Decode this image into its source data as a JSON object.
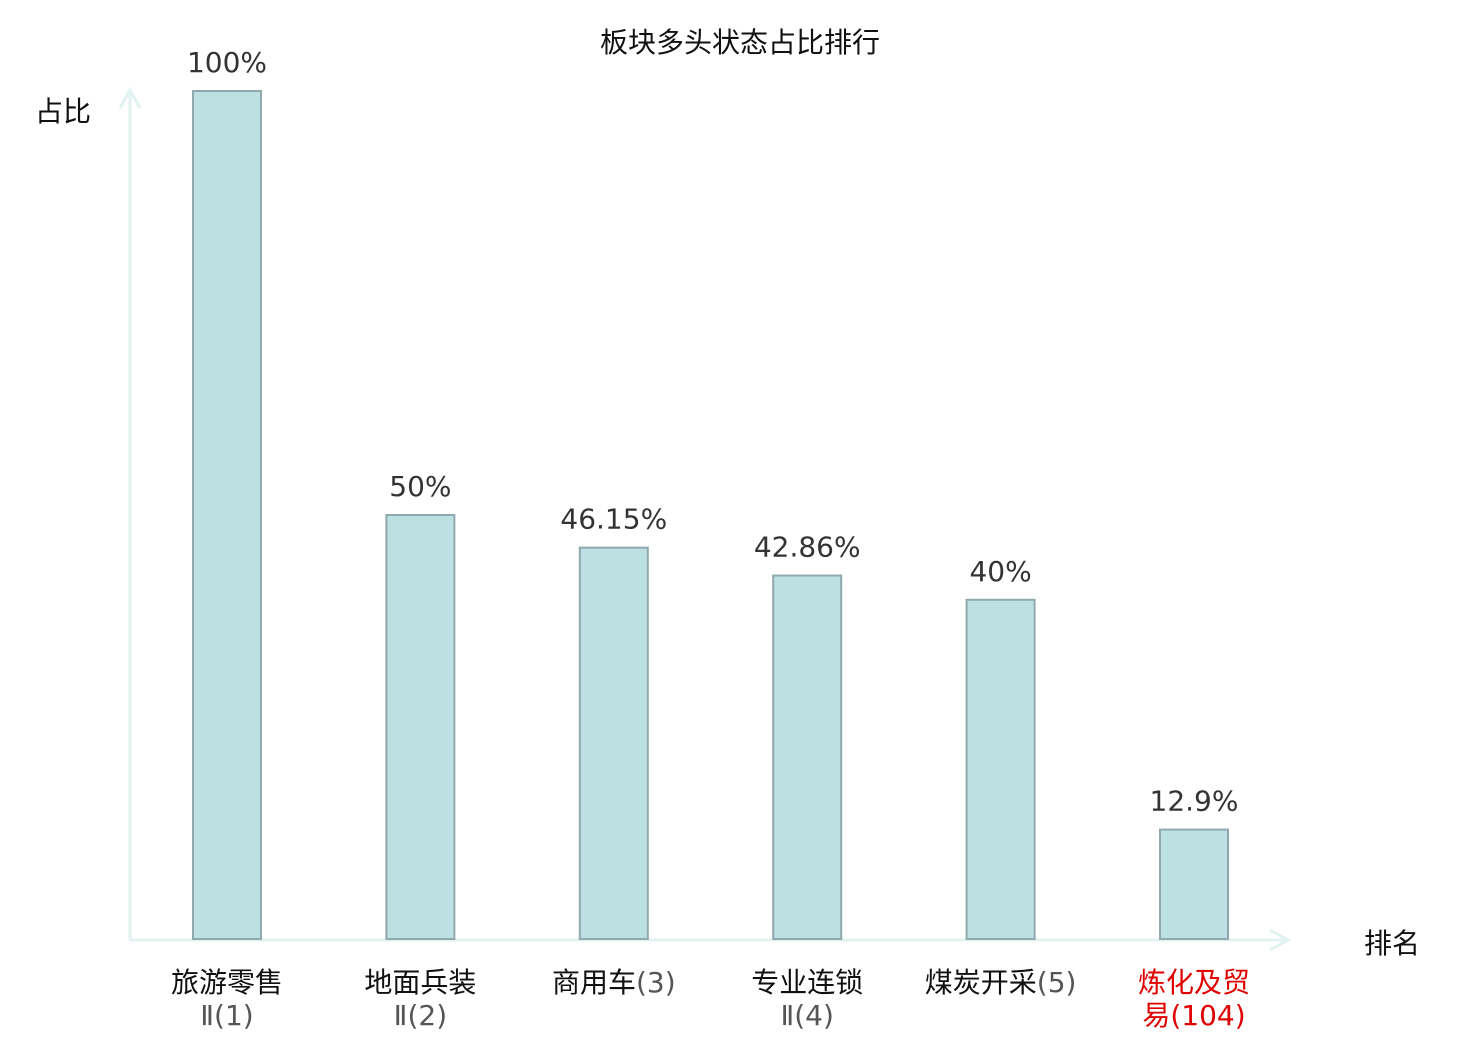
{
  "chart_data": {
    "type": "bar",
    "title": "板块多头状态占比排行",
    "ylabel": "占比",
    "xlabel": "排名",
    "ylim": [
      0,
      100
    ],
    "grid": false,
    "categories": [
      {
        "name_lines": [
          "旅游零售"
        ],
        "rank_text": "Ⅱ(1)",
        "highlight": false
      },
      {
        "name_lines": [
          "地面兵装"
        ],
        "rank_text": "Ⅱ(2)",
        "highlight": false
      },
      {
        "name_lines": [
          "商用车"
        ],
        "rank_text": "(3)",
        "highlight": false
      },
      {
        "name_lines": [
          "专业连锁"
        ],
        "rank_text": "Ⅱ(4)",
        "highlight": false
      },
      {
        "name_lines": [
          "煤炭开采"
        ],
        "rank_text": "(5)",
        "highlight": false
      },
      {
        "name_lines": [
          "炼化及贸",
          "易"
        ],
        "rank_text": "(104)",
        "highlight": true
      }
    ],
    "values": [
      100,
      50,
      46.15,
      42.86,
      40,
      12.9
    ],
    "value_labels": [
      "100%",
      "50%",
      "46.15%",
      "42.86%",
      "40%",
      "12.9%"
    ]
  },
  "colors": {
    "bar_fill": "#bde0e3",
    "bar_stroke": "#8fa9ac",
    "axis": "#e1f2f0",
    "highlight": "#e00000"
  }
}
